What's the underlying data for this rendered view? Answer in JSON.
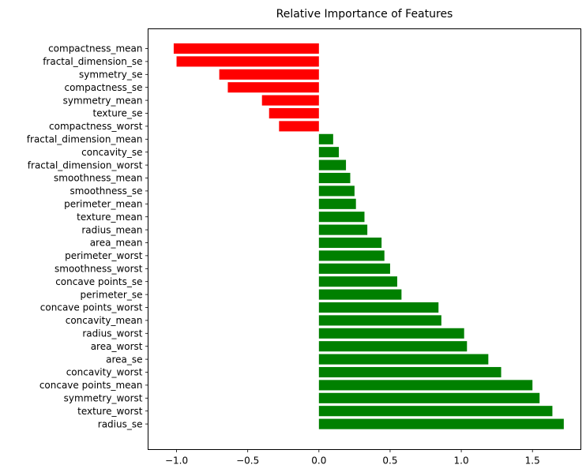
{
  "chart_data": {
    "type": "bar",
    "orientation": "horizontal",
    "title": "Relative Importance of Features",
    "xlabel": "",
    "ylabel": "",
    "xlim": [
      -1.2,
      1.84
    ],
    "xticks": [
      -1.0,
      -0.5,
      0.0,
      0.5,
      1.0,
      1.5
    ],
    "xtick_labels": [
      "−1.0",
      "−0.5",
      "0.0",
      "0.5",
      "1.0",
      "1.5"
    ],
    "grid": false,
    "legend": null,
    "colors": {
      "positive": "#008000",
      "negative": "#ff0000"
    },
    "categories": [
      "compactness_mean",
      "fractal_dimension_se",
      "symmetry_se",
      "compactness_se",
      "symmetry_mean",
      "texture_se",
      "compactness_worst",
      "fractal_dimension_mean",
      "concavity_se",
      "fractal_dimension_worst",
      "smoothness_mean",
      "smoothness_se",
      "perimeter_mean",
      "texture_mean",
      "radius_mean",
      "area_mean",
      "perimeter_worst",
      "smoothness_worst",
      "concave points_se",
      "perimeter_se",
      "concave points_worst",
      "concavity_mean",
      "radius_worst",
      "area_worst",
      "area_se",
      "concavity_worst",
      "concave points_mean",
      "symmetry_worst",
      "texture_worst",
      "radius_se"
    ],
    "values": [
      -1.02,
      -1.0,
      -0.7,
      -0.64,
      -0.4,
      -0.35,
      -0.28,
      0.1,
      0.14,
      0.19,
      0.22,
      0.25,
      0.26,
      0.32,
      0.34,
      0.44,
      0.46,
      0.5,
      0.55,
      0.58,
      0.84,
      0.86,
      1.02,
      1.04,
      1.19,
      1.28,
      1.5,
      1.55,
      1.64,
      1.72
    ]
  }
}
